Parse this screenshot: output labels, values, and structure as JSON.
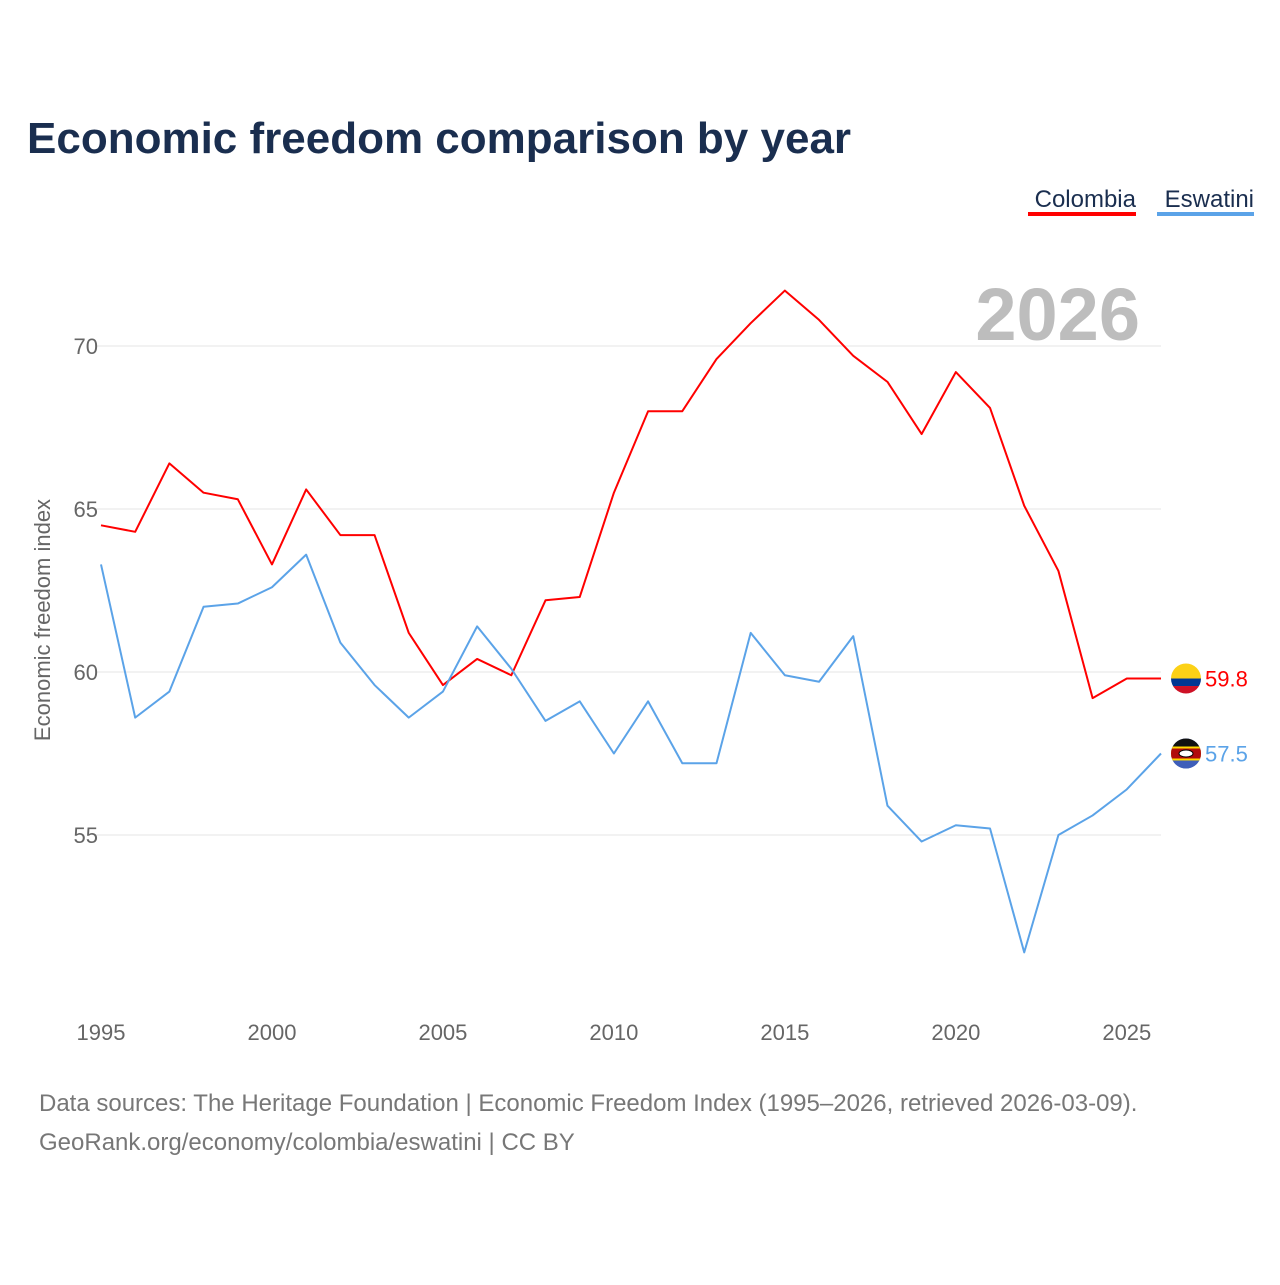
{
  "chart_data": {
    "type": "line",
    "title": "Economic freedom comparison by year",
    "ylabel": "Economic freedom index",
    "xlabel": "",
    "year_watermark": "2026",
    "xlim": [
      1995,
      2026
    ],
    "ylim": [
      50,
      72
    ],
    "x_ticks": [
      1995,
      2000,
      2005,
      2010,
      2015,
      2020,
      2025
    ],
    "y_ticks": [
      55,
      60,
      65,
      70
    ],
    "grid": "horizontal",
    "legend_position": "top-right",
    "x": [
      1995,
      1996,
      1997,
      1998,
      1999,
      2000,
      2001,
      2002,
      2003,
      2004,
      2005,
      2006,
      2007,
      2008,
      2009,
      2010,
      2011,
      2012,
      2013,
      2014,
      2015,
      2016,
      2017,
      2018,
      2019,
      2020,
      2021,
      2022,
      2023,
      2024,
      2025,
      2026
    ],
    "series": [
      {
        "name": "Colombia",
        "color": "#ff0000",
        "end_label": "59.8",
        "values": [
          64.5,
          64.3,
          66.4,
          65.5,
          65.3,
          63.3,
          65.6,
          64.2,
          64.2,
          61.2,
          59.6,
          60.4,
          59.9,
          62.2,
          62.3,
          65.5,
          68.0,
          68.0,
          69.6,
          70.7,
          71.7,
          70.8,
          69.7,
          68.9,
          67.3,
          69.2,
          68.1,
          65.1,
          63.1,
          59.2,
          59.8,
          59.8
        ]
      },
      {
        "name": "Eswatini",
        "color": "#5ba3e8",
        "end_label": "57.5",
        "values": [
          63.3,
          58.6,
          59.4,
          62.0,
          62.1,
          62.6,
          63.6,
          60.9,
          59.6,
          58.6,
          59.4,
          61.4,
          60.1,
          58.5,
          59.1,
          57.5,
          59.1,
          57.2,
          57.2,
          61.2,
          59.9,
          59.7,
          61.1,
          55.9,
          54.8,
          55.3,
          55.2,
          51.4,
          55.0,
          55.6,
          56.4,
          57.5
        ]
      }
    ]
  },
  "footer": {
    "line1": "Data sources: The Heritage Foundation | Economic Freedom Index (1995–2026, retrieved 2026-03-09).",
    "line2": "GeoRank.org/economy/colombia/eswatini | CC BY"
  }
}
